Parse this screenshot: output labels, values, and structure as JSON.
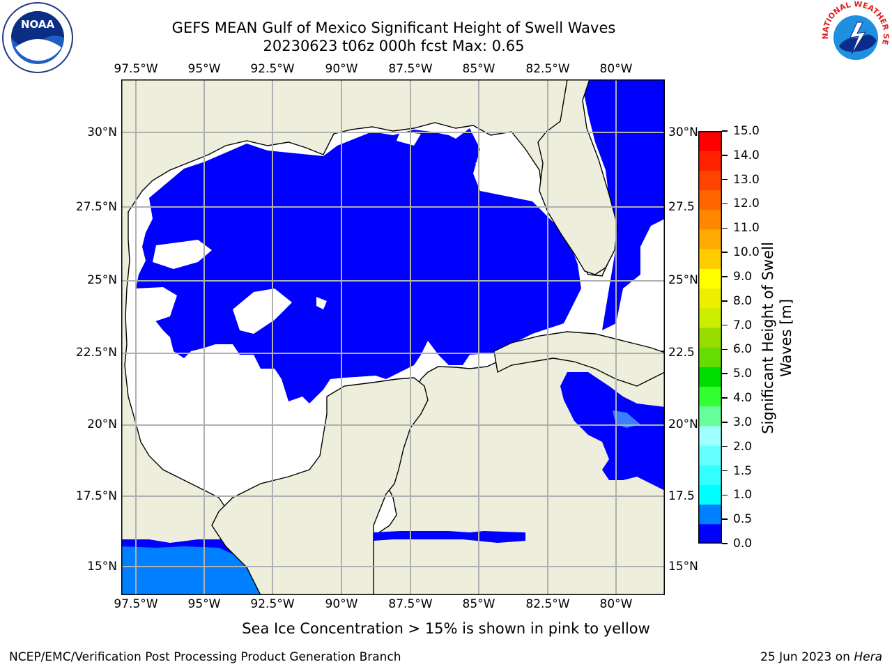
{
  "title_line1": "GEFS MEAN Gulf of Mexico Significant Height of Swell Waves",
  "title_line2": "20230623 t06z 000h fcst   Max: 0.65",
  "subtitle": "Sea Ice Concentration > 15% is shown in pink to yellow",
  "footer_left": "NCEP/EMC/Verification Post Processing Product Generation Branch",
  "footer_date": "25 Jun 2023 on ",
  "footer_machine": "Hera",
  "lon_labels": [
    "97.5°W",
    "95°W",
    "92.5°W",
    "90°W",
    "87.5°W",
    "85°W",
    "82.5°W",
    "80°W"
  ],
  "lat_labels_left": [
    "30°N",
    "27.5°N",
    "25°N",
    "22.5°N",
    "20°N",
    "17.5°N",
    "15°N"
  ],
  "lat_labels_right": [
    "30°N",
    "27.5",
    "25°N",
    "22.5",
    "20°N",
    "17.5",
    "15°N"
  ],
  "colorbar": {
    "label_line1": "Significant Height of Swell",
    "label_line2": "Waves [m]",
    "ticks": [
      "0.0",
      "0.5",
      "1.0",
      "1.5",
      "2.0",
      "3.0",
      "4.0",
      "5.0",
      "6.0",
      "7.0",
      "8.0",
      "9.0",
      "10.0",
      "11.0",
      "12.0",
      "13.0",
      "14.0",
      "15.0"
    ],
    "colors": [
      "#0000ff",
      "#0080ff",
      "#00ffff",
      "#33ffff",
      "#66ffff",
      "#a0ffff",
      "#66ff99",
      "#33ff33",
      "#00dd00",
      "#66dd00",
      "#99dd00",
      "#ccee00",
      "#eeee00",
      "#ffff00",
      "#ffcc00",
      "#ffaa00",
      "#ff8800",
      "#ff6600",
      "#ff4400",
      "#ff2200",
      "#ff0000"
    ]
  },
  "logos": {
    "noaa": "NOAA",
    "nws": "NATIONAL WEATHER SERVICE"
  },
  "colors": {
    "land": "#eeeedc",
    "ocean_low": "#0000ff",
    "ocean_mid": "#0080ff",
    "coast": "#000000",
    "grid": "#b0b0b0"
  }
}
